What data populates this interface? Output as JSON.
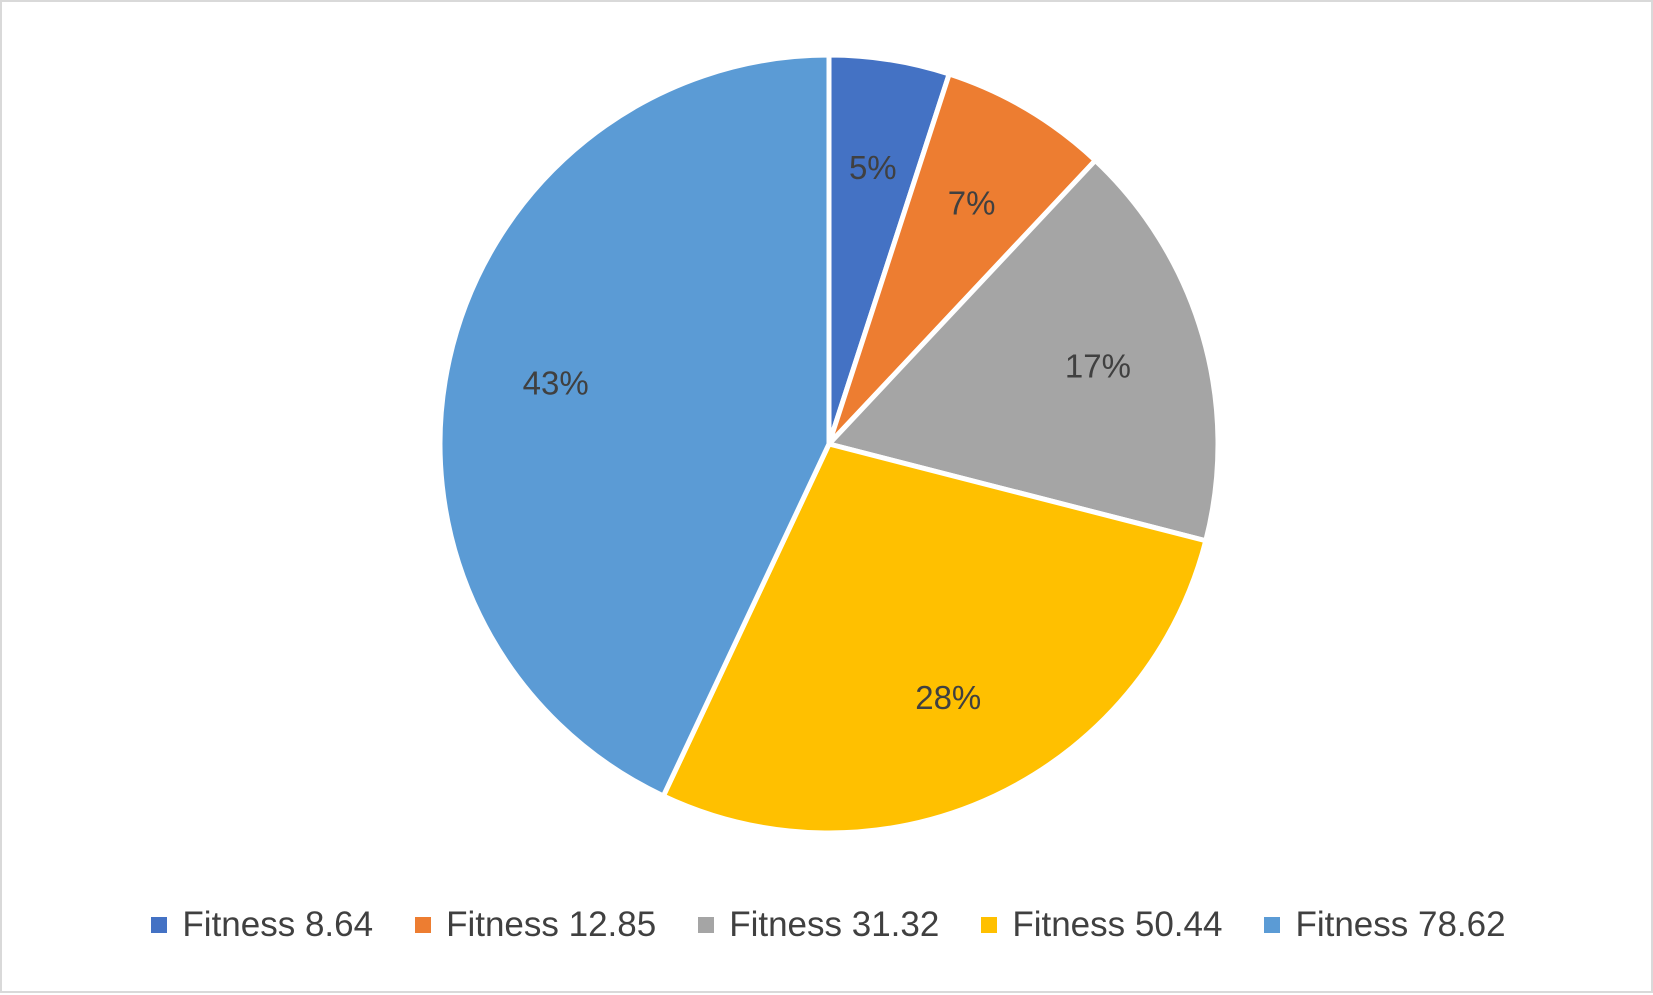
{
  "chart_data": {
    "type": "pie",
    "title": "",
    "categories": [
      "Fitness 8.64",
      "Fitness 12.85",
      "Fitness 31.32",
      "Fitness 50.44",
      "Fitness 78.62"
    ],
    "values": [
      5,
      7,
      17,
      28,
      43
    ],
    "data_labels": [
      "5%",
      "7%",
      "17%",
      "28%",
      "43%"
    ],
    "colors": [
      "#4472c4",
      "#ed7d31",
      "#a5a5a5",
      "#ffc000",
      "#5b9bd5"
    ],
    "start_angle": "12 o'clock",
    "direction": "clockwise",
    "legend_position": "bottom"
  }
}
